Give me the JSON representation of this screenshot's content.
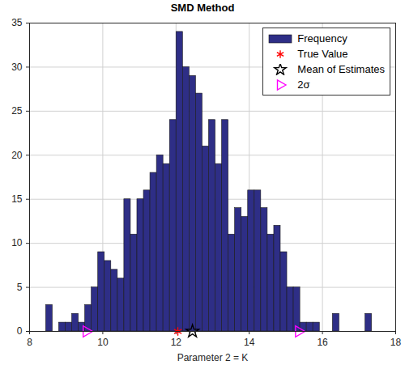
{
  "chart_data": {
    "type": "histogram",
    "title": "SMD Method",
    "x_label": "Parameter 2 = K",
    "bins": [
      8.45,
      8.628,
      8.806,
      8.984,
      9.162,
      9.34,
      9.518,
      9.696,
      9.874,
      10.052,
      10.23,
      10.408,
      10.586,
      10.764,
      10.942,
      11.12,
      11.298,
      11.476,
      11.654,
      11.832,
      12.01,
      12.188,
      12.366,
      12.544,
      12.722,
      12.9,
      13.078,
      13.256,
      13.434,
      13.612,
      13.79,
      13.968,
      14.146,
      14.324,
      14.502,
      14.68,
      14.858,
      15.036,
      15.214,
      15.392,
      15.57,
      15.748,
      15.926,
      16.104,
      16.282,
      16.46,
      16.638,
      16.816,
      16.994,
      17.172,
      17.35
    ],
    "series": [
      {
        "name": "Frequency",
        "type": "histogram",
        "color": "#2e2e86",
        "values": [
          3,
          0,
          1,
          1,
          2,
          1,
          3,
          5,
          9,
          8,
          7,
          6,
          15,
          11,
          15,
          16,
          18,
          20,
          19,
          24,
          34,
          30,
          29,
          27,
          21,
          24,
          19,
          24,
          11,
          14,
          13,
          16,
          16,
          14,
          11,
          12,
          9,
          5,
          5,
          1,
          1,
          1,
          0,
          0,
          2,
          0,
          0,
          0,
          0,
          2
        ]
      },
      {
        "name": "True Value",
        "type": "scatter",
        "marker": "asterisk",
        "color": "#ff0000",
        "x": [
          12.05
        ],
        "values": [
          0
        ]
      },
      {
        "name": "Mean of Estimates",
        "type": "scatter",
        "marker": "hexagram",
        "color": "#000000",
        "x": [
          12.45
        ],
        "values": [
          0
        ]
      },
      {
        "name": "2σ",
        "type": "scatter",
        "marker": "triangle-right",
        "color": "#ff00ff",
        "x": [
          9.55,
          15.35
        ],
        "values": [
          0,
          0
        ]
      }
    ],
    "xlim": [
      8,
      18
    ],
    "xticks": [
      8,
      10,
      12,
      14,
      16,
      18
    ],
    "ylim": [
      0,
      35
    ],
    "yticks": [
      0,
      5,
      10,
      15,
      20,
      25,
      30,
      35
    ],
    "grid": true,
    "legend": "top-right"
  }
}
